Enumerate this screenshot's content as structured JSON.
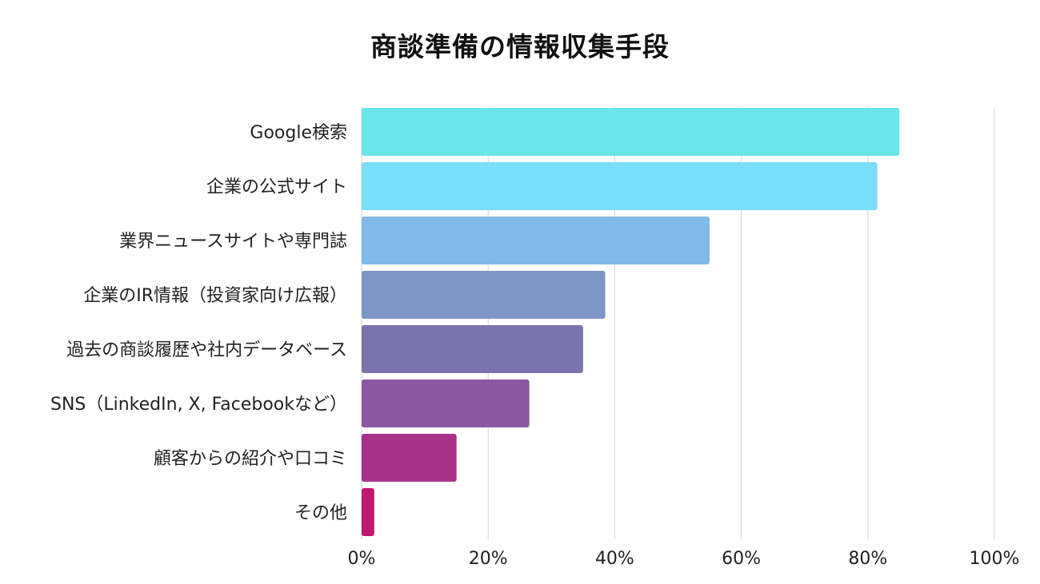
{
  "chart_data": {
    "type": "bar",
    "orientation": "horizontal",
    "title": "商談準備の情報収集手段",
    "xlabel": "",
    "ylabel": "",
    "xlim": [
      0,
      100
    ],
    "tick_values": [
      0,
      20,
      40,
      60,
      80,
      100
    ],
    "tick_labels": [
      "0%",
      "20%",
      "40%",
      "60%",
      "80%",
      "100%"
    ],
    "grid": true,
    "legend": "none",
    "categories": [
      "Google検索",
      "企業の公式サイト",
      "業界ニュースサイトや専門誌",
      "企業のIR情報（投資家向け広報）",
      "過去の商談履歴や社内データベース",
      "SNS（LinkedIn, X, Facebookなど）",
      "顧客からの紹介や口コミ",
      "その他"
    ],
    "values": [
      85,
      81.5,
      55,
      38.5,
      35,
      26.5,
      15,
      2
    ],
    "colors": [
      "#6ae6e8",
      "#78def9",
      "#80bbe8",
      "#7e96c6",
      "#7b74ac",
      "#8a58a0",
      "#a8328a",
      "#c0186e"
    ]
  }
}
